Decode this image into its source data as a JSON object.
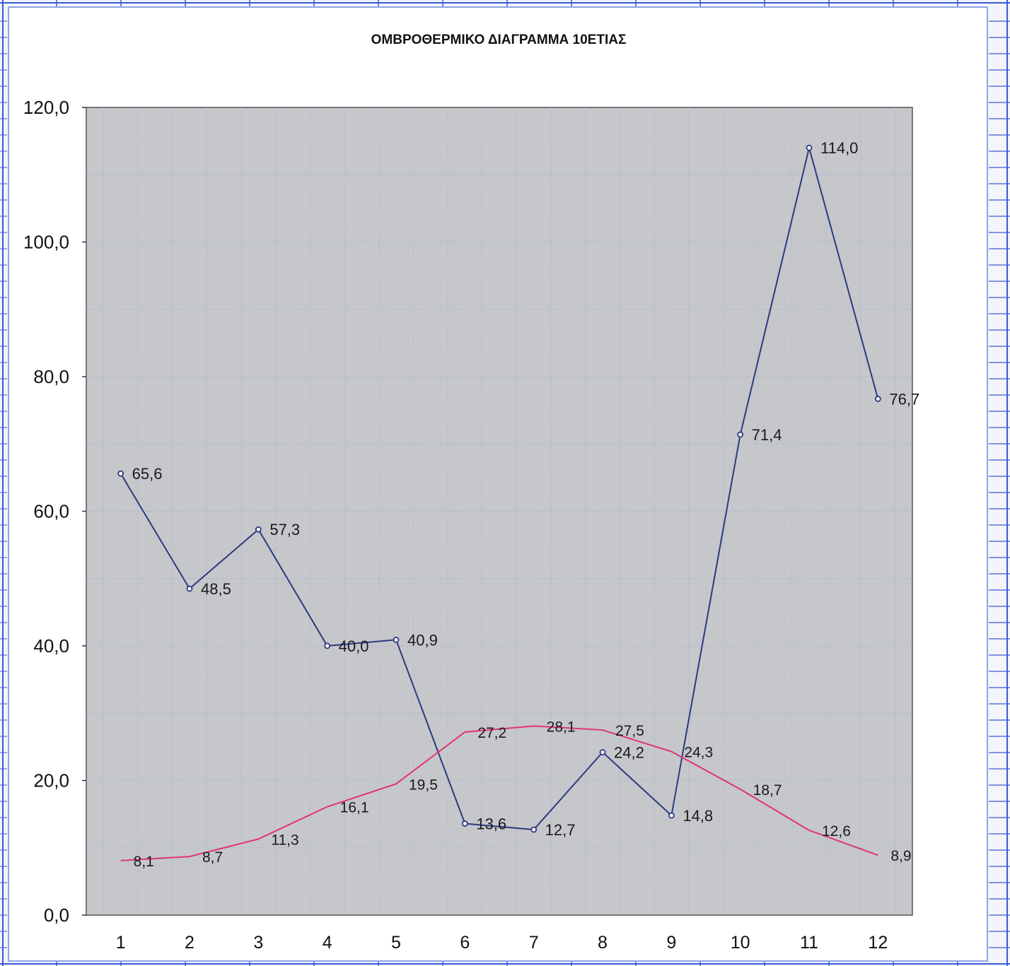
{
  "chart_data": {
    "type": "line",
    "title": "ΟΜΒΡΟΘΕΡΜΙΚΟ ΔΙΑΓΡΑΜΜΑ 10ΕΤΙΑΣ",
    "xlabel": "",
    "ylabel": "",
    "categories": [
      "1",
      "2",
      "3",
      "4",
      "5",
      "6",
      "7",
      "8",
      "9",
      "10",
      "11",
      "12"
    ],
    "ylim": [
      0,
      120
    ],
    "yticks": [
      "0,0",
      "20,0",
      "40,0",
      "60,0",
      "80,0",
      "100,0",
      "120,0"
    ],
    "grid": true,
    "legend": "none",
    "series": [
      {
        "color": "#2b3a80",
        "markers": true,
        "values": [
          65.6,
          48.5,
          57.3,
          40.0,
          40.9,
          13.6,
          12.7,
          24.2,
          14.8,
          71.4,
          114.0,
          76.7
        ],
        "labels": [
          "65,6",
          "48,5",
          "57,3",
          "40,0",
          "40,9",
          "13,6",
          "12,7",
          "24,2",
          "14,8",
          "71,4",
          "114,0",
          "76,7"
        ]
      },
      {
        "color": "#e0356e",
        "markers": false,
        "values": [
          8.1,
          8.7,
          11.3,
          16.1,
          19.5,
          27.2,
          28.1,
          27.5,
          24.3,
          18.7,
          12.6,
          8.9
        ],
        "labels": [
          "8,1",
          "8,7",
          "11,3",
          "16,1",
          "19,5",
          "27,2",
          "28,1",
          "27,5",
          "24,3",
          "18,7",
          "12,6",
          "8,9"
        ]
      }
    ],
    "colors": {
      "plot_background": "#c6c7cb",
      "grid": "#a9b4d6",
      "page_grid": "#3b5bd6"
    }
  }
}
